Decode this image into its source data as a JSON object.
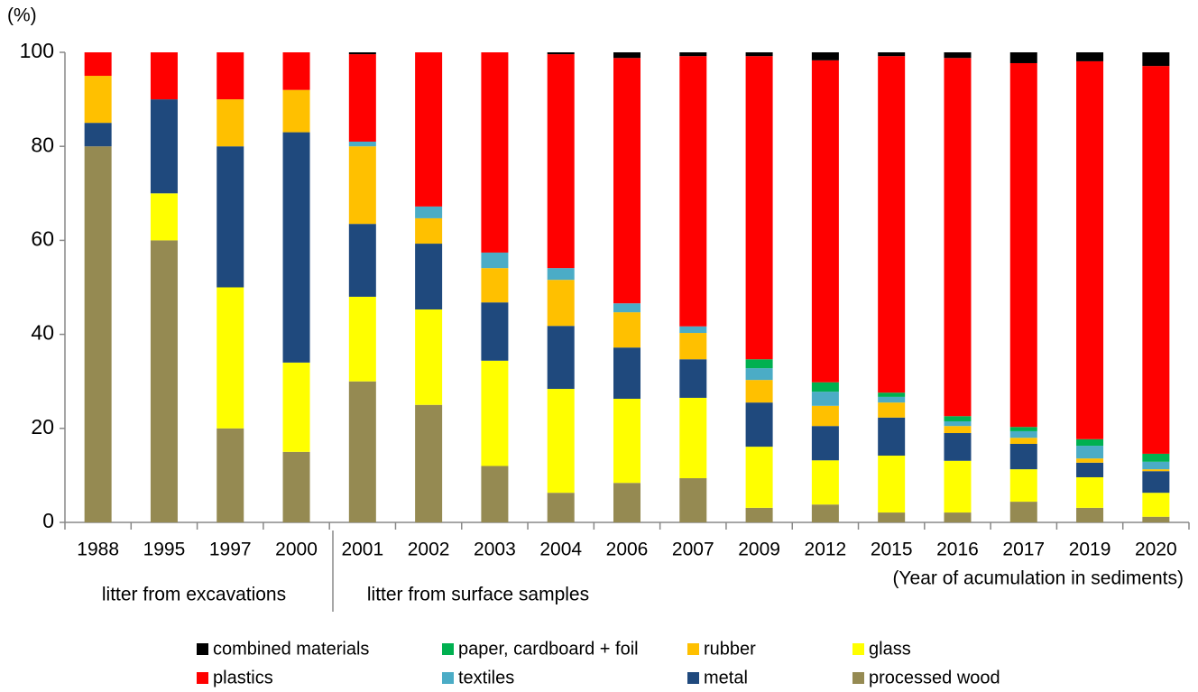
{
  "chart_data": {
    "type": "stacked_bar",
    "y_unit_label": "(%)",
    "x_axis_note": "(Year of acumulation in sediments)",
    "group_labels": [
      "litter from excavations",
      "litter from surface samples"
    ],
    "categories": [
      "1988",
      "1995",
      "1997",
      "2000",
      "2001",
      "2002",
      "2003",
      "2004",
      "2006",
      "2007",
      "2009",
      "2012",
      "2015",
      "2016",
      "2017",
      "2019",
      "2020"
    ],
    "series": [
      {
        "name": "processed wood",
        "color": "#958a52",
        "values": [
          80,
          60,
          20,
          15,
          30,
          25,
          12,
          6.3,
          8.4,
          9.4,
          3.1,
          3.8,
          2.1,
          2.1,
          4.4,
          3.1,
          1.2
        ]
      },
      {
        "name": "glass",
        "color": "#ffff00",
        "values": [
          0,
          10,
          30,
          19,
          18,
          20.3,
          22.4,
          22.1,
          17.9,
          17.1,
          13,
          9.4,
          12.1,
          11,
          6.9,
          6.5,
          5.1
        ]
      },
      {
        "name": "metal",
        "color": "#1f497d",
        "values": [
          5,
          20,
          30,
          49,
          15.5,
          14,
          12.4,
          13.4,
          10.9,
          8.2,
          9.4,
          7.3,
          8.1,
          5.9,
          5.4,
          3.1,
          4.6
        ]
      },
      {
        "name": "rubber",
        "color": "#ffc000",
        "values": [
          10,
          0,
          10,
          9,
          16.5,
          5.4,
          7.3,
          9.8,
          7.5,
          5.6,
          4.8,
          4.3,
          3.2,
          1.5,
          1.3,
          0.9,
          0.4
        ]
      },
      {
        "name": "textiles",
        "color": "#4bacc6",
        "values": [
          0,
          0,
          0,
          0,
          1,
          2.5,
          3.3,
          2.5,
          1.9,
          1.4,
          2.5,
          3,
          1.2,
          1,
          1.4,
          2.7,
          1.6
        ]
      },
      {
        "name": "paper, cardboard + foil",
        "color": "#00b050",
        "values": [
          0,
          0,
          0,
          0,
          0,
          0,
          0,
          0,
          0,
          0,
          1.9,
          2,
          0.9,
          1.1,
          0.9,
          1.4,
          1.7
        ]
      },
      {
        "name": "plastics",
        "color": "#ff0000",
        "values": [
          5,
          10,
          10,
          8,
          18.6,
          32.8,
          42.6,
          45.5,
          52.2,
          57.5,
          64.5,
          68.5,
          71.6,
          76.2,
          77.4,
          80.4,
          82.5
        ]
      },
      {
        "name": "combined materials",
        "color": "#000000",
        "values": [
          0,
          0,
          0,
          0,
          0.4,
          0,
          0,
          0.4,
          1.2,
          0.8,
          0.8,
          1.7,
          0.8,
          1.2,
          2.3,
          1.9,
          2.9
        ]
      }
    ],
    "ylim": [
      0,
      100
    ],
    "yticks": [
      0,
      20,
      40,
      60,
      80,
      100
    ],
    "grid": false
  }
}
